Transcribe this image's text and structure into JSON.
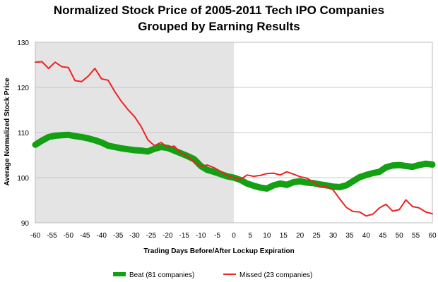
{
  "chart_data": {
    "type": "line",
    "title_lines": [
      "Normalized Stock Price of 2005-2011 Tech IPO Companies",
      "Grouped by Earning Results"
    ],
    "xlabel": "Trading Days Before/After Lockup Expiration",
    "ylabel": "Average Normalized Stock Price",
    "xlim": [
      -60,
      60
    ],
    "ylim": [
      90,
      130
    ],
    "x_ticks": [
      -60,
      -55,
      -50,
      -45,
      -40,
      -35,
      -30,
      -25,
      -20,
      -15,
      -10,
      -5,
      0,
      5,
      10,
      15,
      20,
      25,
      30,
      35,
      40,
      45,
      50,
      55,
      60
    ],
    "x_tick_labels": [
      "-60",
      "-55",
      "-50",
      "-45",
      "-40",
      "-35",
      "-30",
      "-25",
      "-20",
      "-15",
      "-10",
      "-5",
      "0",
      "5",
      "10",
      "15",
      "20",
      "25",
      "30",
      "35",
      "40",
      "45",
      "50",
      "55",
      "60"
    ],
    "y_ticks": [
      90,
      100,
      110,
      120,
      130
    ],
    "y_tick_labels": [
      "90",
      "100",
      "110",
      "120",
      "130"
    ],
    "grid": true,
    "shaded_region": {
      "x": [
        -60,
        0
      ],
      "color": "#e4e4e4"
    },
    "legend_position": "bottom",
    "series": [
      {
        "name": "Beat (81 companies)",
        "color": "#13a013",
        "x": [
          -60,
          -58,
          -56,
          -54,
          -52,
          -50,
          -48,
          -46,
          -44,
          -42,
          -40,
          -38,
          -36,
          -34,
          -32,
          -30,
          -28,
          -26,
          -24,
          -22,
          -20,
          -18,
          -16,
          -14,
          -12,
          -10,
          -8,
          -6,
          -4,
          -2,
          0,
          2,
          4,
          6,
          8,
          10,
          12,
          14,
          16,
          18,
          20,
          22,
          24,
          26,
          28,
          30,
          32,
          34,
          36,
          38,
          40,
          42,
          44,
          46,
          48,
          50,
          52,
          54,
          56,
          58,
          60
        ],
        "values": [
          107.3,
          108.2,
          109.0,
          109.3,
          109.4,
          109.5,
          109.2,
          109.0,
          108.7,
          108.3,
          107.8,
          107.1,
          106.8,
          106.5,
          106.3,
          106.1,
          106.0,
          105.8,
          106.4,
          106.8,
          106.6,
          106.0,
          105.4,
          104.8,
          104.1,
          102.6,
          101.7,
          101.3,
          100.8,
          100.3,
          100.0,
          99.5,
          98.7,
          98.2,
          97.8,
          97.6,
          98.3,
          98.7,
          98.4,
          99.0,
          99.2,
          98.9,
          98.8,
          98.5,
          98.3,
          98.0,
          97.9,
          98.3,
          99.2,
          100.1,
          100.6,
          101.0,
          101.3,
          102.3,
          102.7,
          102.8,
          102.6,
          102.4,
          102.8,
          103.1,
          102.9
        ]
      },
      {
        "name": "Missed (23 companies)",
        "color": "#ee2222",
        "x": [
          -60,
          -58,
          -56,
          -54,
          -52,
          -50,
          -48,
          -46,
          -44,
          -42,
          -40,
          -38,
          -36,
          -34,
          -32,
          -30,
          -28,
          -26,
          -24,
          -22,
          -20,
          -18,
          -16,
          -14,
          -12,
          -10,
          -8,
          -6,
          -4,
          -2,
          0,
          2,
          4,
          6,
          8,
          10,
          12,
          14,
          16,
          18,
          20,
          22,
          24,
          26,
          28,
          30,
          32,
          34,
          36,
          38,
          40,
          42,
          44,
          46,
          48,
          50,
          52,
          54,
          56,
          58,
          60
        ],
        "values": [
          125.6,
          125.7,
          124.2,
          125.6,
          124.6,
          124.4,
          121.5,
          121.3,
          122.5,
          124.2,
          121.9,
          121.6,
          119.1,
          116.9,
          115.1,
          113.5,
          111.3,
          108.4,
          107.1,
          107.8,
          106.7,
          107.0,
          105.4,
          104.7,
          103.5,
          102.5,
          102.8,
          102.2,
          101.4,
          100.5,
          100.0,
          99.6,
          100.6,
          100.3,
          100.5,
          100.9,
          101.0,
          100.6,
          101.3,
          100.8,
          100.2,
          99.9,
          99.1,
          97.9,
          98.0,
          97.3,
          95.3,
          93.4,
          92.5,
          92.4,
          91.5,
          91.9,
          93.3,
          94.1,
          92.6,
          92.9,
          95.1,
          93.6,
          93.3,
          92.4,
          92.0
        ]
      }
    ]
  }
}
